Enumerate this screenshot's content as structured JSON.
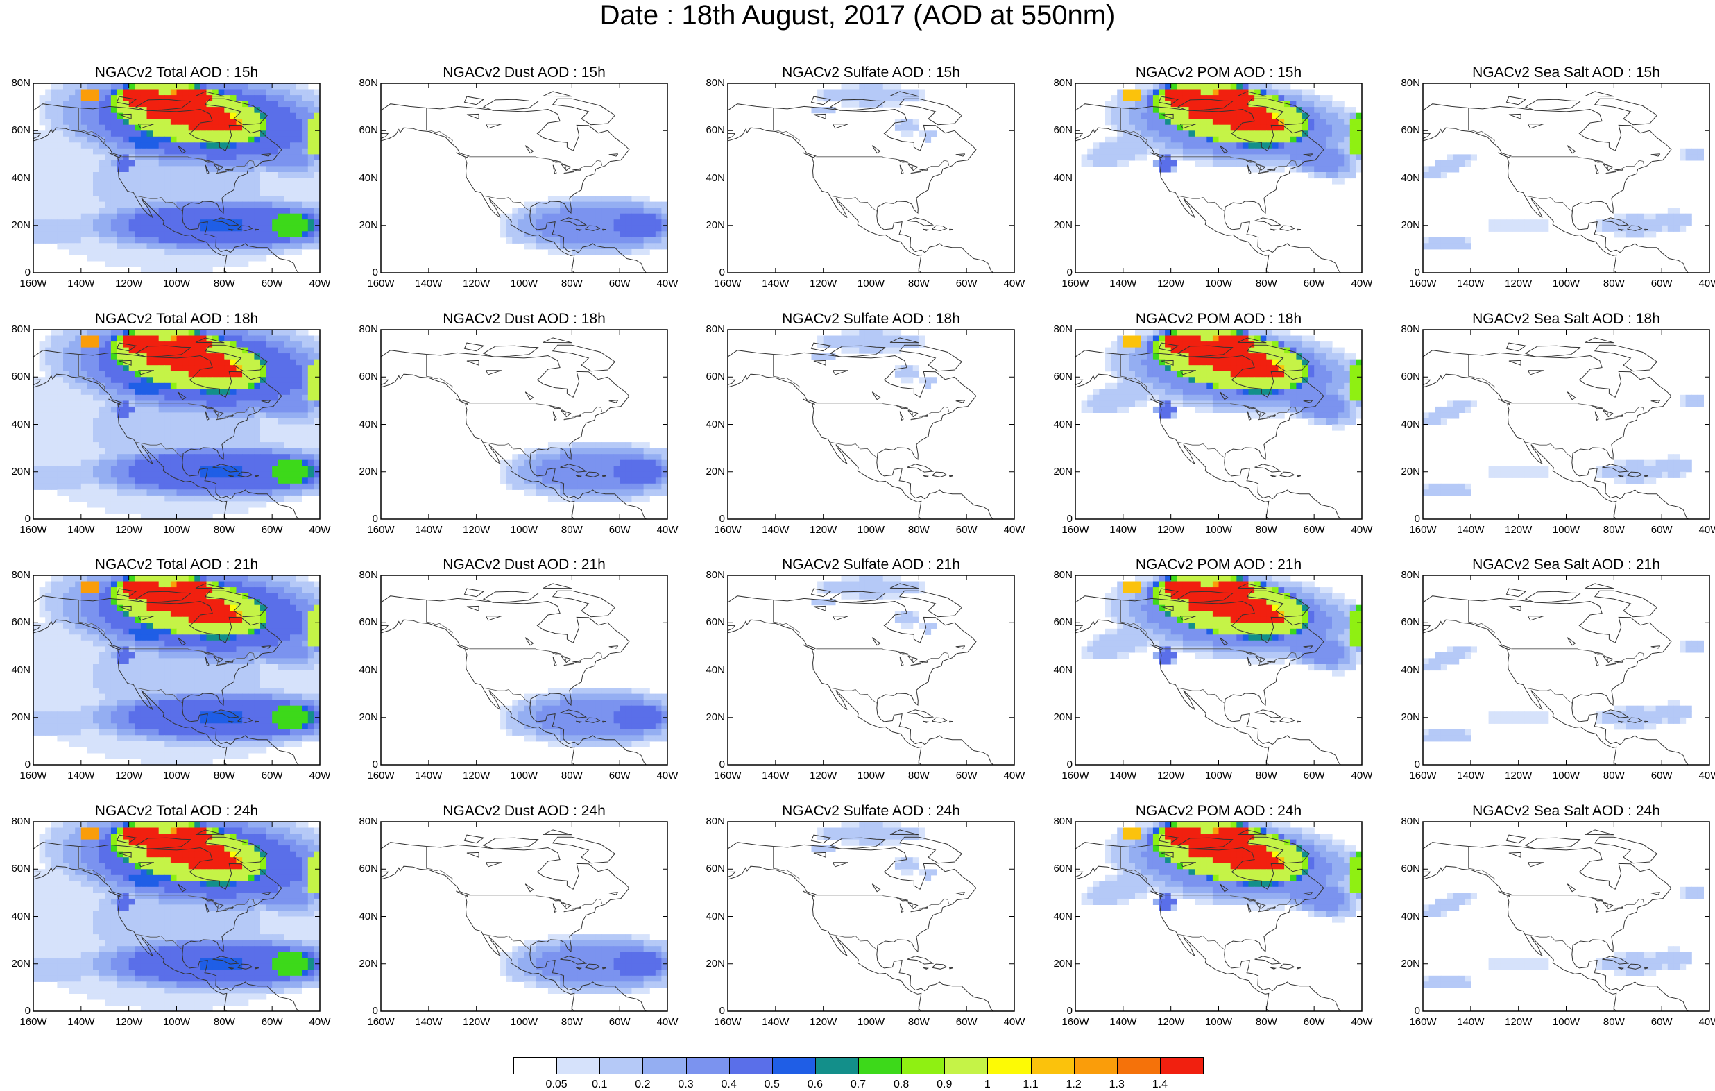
{
  "title": "Date : 18th August, 2017 (AOD at 550nm)",
  "lat_labels": [
    "80N",
    "60N",
    "40N",
    "20N",
    "0"
  ],
  "lon_labels": [
    "160W",
    "140W",
    "120W",
    "100W",
    "80W",
    "60W",
    "40W"
  ],
  "panels": [
    {
      "title": "NGACv2 Total AOD : 15h",
      "species": "total",
      "hour": "15h"
    },
    {
      "title": "NGACv2 Dust AOD : 15h",
      "species": "dust",
      "hour": "15h"
    },
    {
      "title": "NGACv2 Sulfate AOD : 15h",
      "species": "sulfate",
      "hour": "15h"
    },
    {
      "title": "NGACv2 POM AOD : 15h",
      "species": "pom",
      "hour": "15h"
    },
    {
      "title": "NGACv2 Sea Salt AOD : 15h",
      "species": "seasalt",
      "hour": "15h"
    },
    {
      "title": "NGACv2 Total AOD : 18h",
      "species": "total",
      "hour": "18h"
    },
    {
      "title": "NGACv2 Dust AOD : 18h",
      "species": "dust",
      "hour": "18h"
    },
    {
      "title": "NGACv2 Sulfate AOD : 18h",
      "species": "sulfate",
      "hour": "18h"
    },
    {
      "title": "NGACv2 POM AOD : 18h",
      "species": "pom",
      "hour": "18h"
    },
    {
      "title": "NGACv2 Sea Salt AOD : 18h",
      "species": "seasalt",
      "hour": "18h"
    },
    {
      "title": "NGACv2 Total AOD : 21h",
      "species": "total",
      "hour": "21h"
    },
    {
      "title": "NGACv2 Dust AOD : 21h",
      "species": "dust",
      "hour": "21h"
    },
    {
      "title": "NGACv2 Sulfate AOD : 21h",
      "species": "sulfate",
      "hour": "21h"
    },
    {
      "title": "NGACv2 POM AOD : 21h",
      "species": "pom",
      "hour": "21h"
    },
    {
      "title": "NGACv2 Sea Salt AOD : 21h",
      "species": "seasalt",
      "hour": "21h"
    },
    {
      "title": "NGACv2 Total AOD : 24h",
      "species": "total",
      "hour": "24h"
    },
    {
      "title": "NGACv2 Dust AOD : 24h",
      "species": "dust",
      "hour": "24h"
    },
    {
      "title": "NGACv2 Sulfate AOD : 24h",
      "species": "sulfate",
      "hour": "24h"
    },
    {
      "title": "NGACv2 POM AOD : 24h",
      "species": "pom",
      "hour": "24h"
    },
    {
      "title": "NGACv2 Sea Salt  AOD : 24h",
      "species": "seasalt",
      "hour": "24h"
    }
  ],
  "colorbar": {
    "labels": [
      "0.05",
      "0.1",
      "0.2",
      "0.3",
      "0.4",
      "0.5",
      "0.6",
      "0.7",
      "0.8",
      "0.9",
      "1",
      "1.1",
      "1.2",
      "1.3",
      "1.4"
    ],
    "colors": [
      "#ffffff",
      "#d6e2fb",
      "#b5c9f7",
      "#94aef2",
      "#7b93ef",
      "#5a6fe9",
      "#1f5ee6",
      "#138f8a",
      "#3dd91a",
      "#8ff012",
      "#c5f347",
      "#fdfa05",
      "#fbc20c",
      "#fa9d0a",
      "#f5720a",
      "#f1200f"
    ]
  },
  "map_extent": {
    "lon_min": -160,
    "lon_max": -40,
    "lat_min": 0,
    "lat_max": 80
  }
}
